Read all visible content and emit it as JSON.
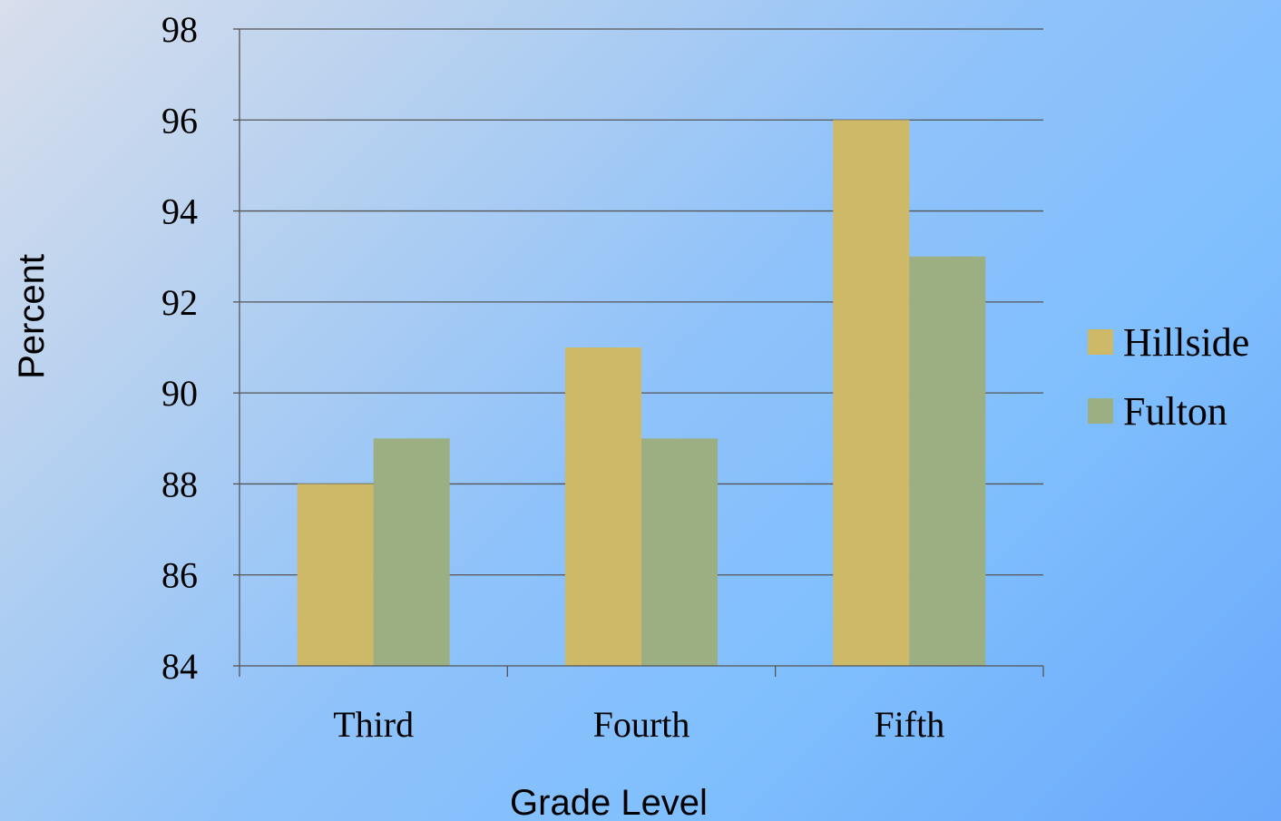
{
  "chart_data": {
    "type": "bar",
    "categories": [
      "Third",
      "Fourth",
      "Fifth"
    ],
    "series": [
      {
        "name": "Hillside",
        "values": [
          88,
          91,
          96
        ],
        "color": "#cdb967"
      },
      {
        "name": "Fulton",
        "values": [
          89,
          89,
          93
        ],
        "color": "#9caf82"
      }
    ],
    "title": "",
    "xlabel": "Grade Level",
    "ylabel": "Percent",
    "ylim": [
      84,
      98
    ],
    "yticks": [
      84,
      86,
      88,
      90,
      92,
      94,
      96,
      98
    ],
    "grid": true,
    "legend_position": "right"
  }
}
